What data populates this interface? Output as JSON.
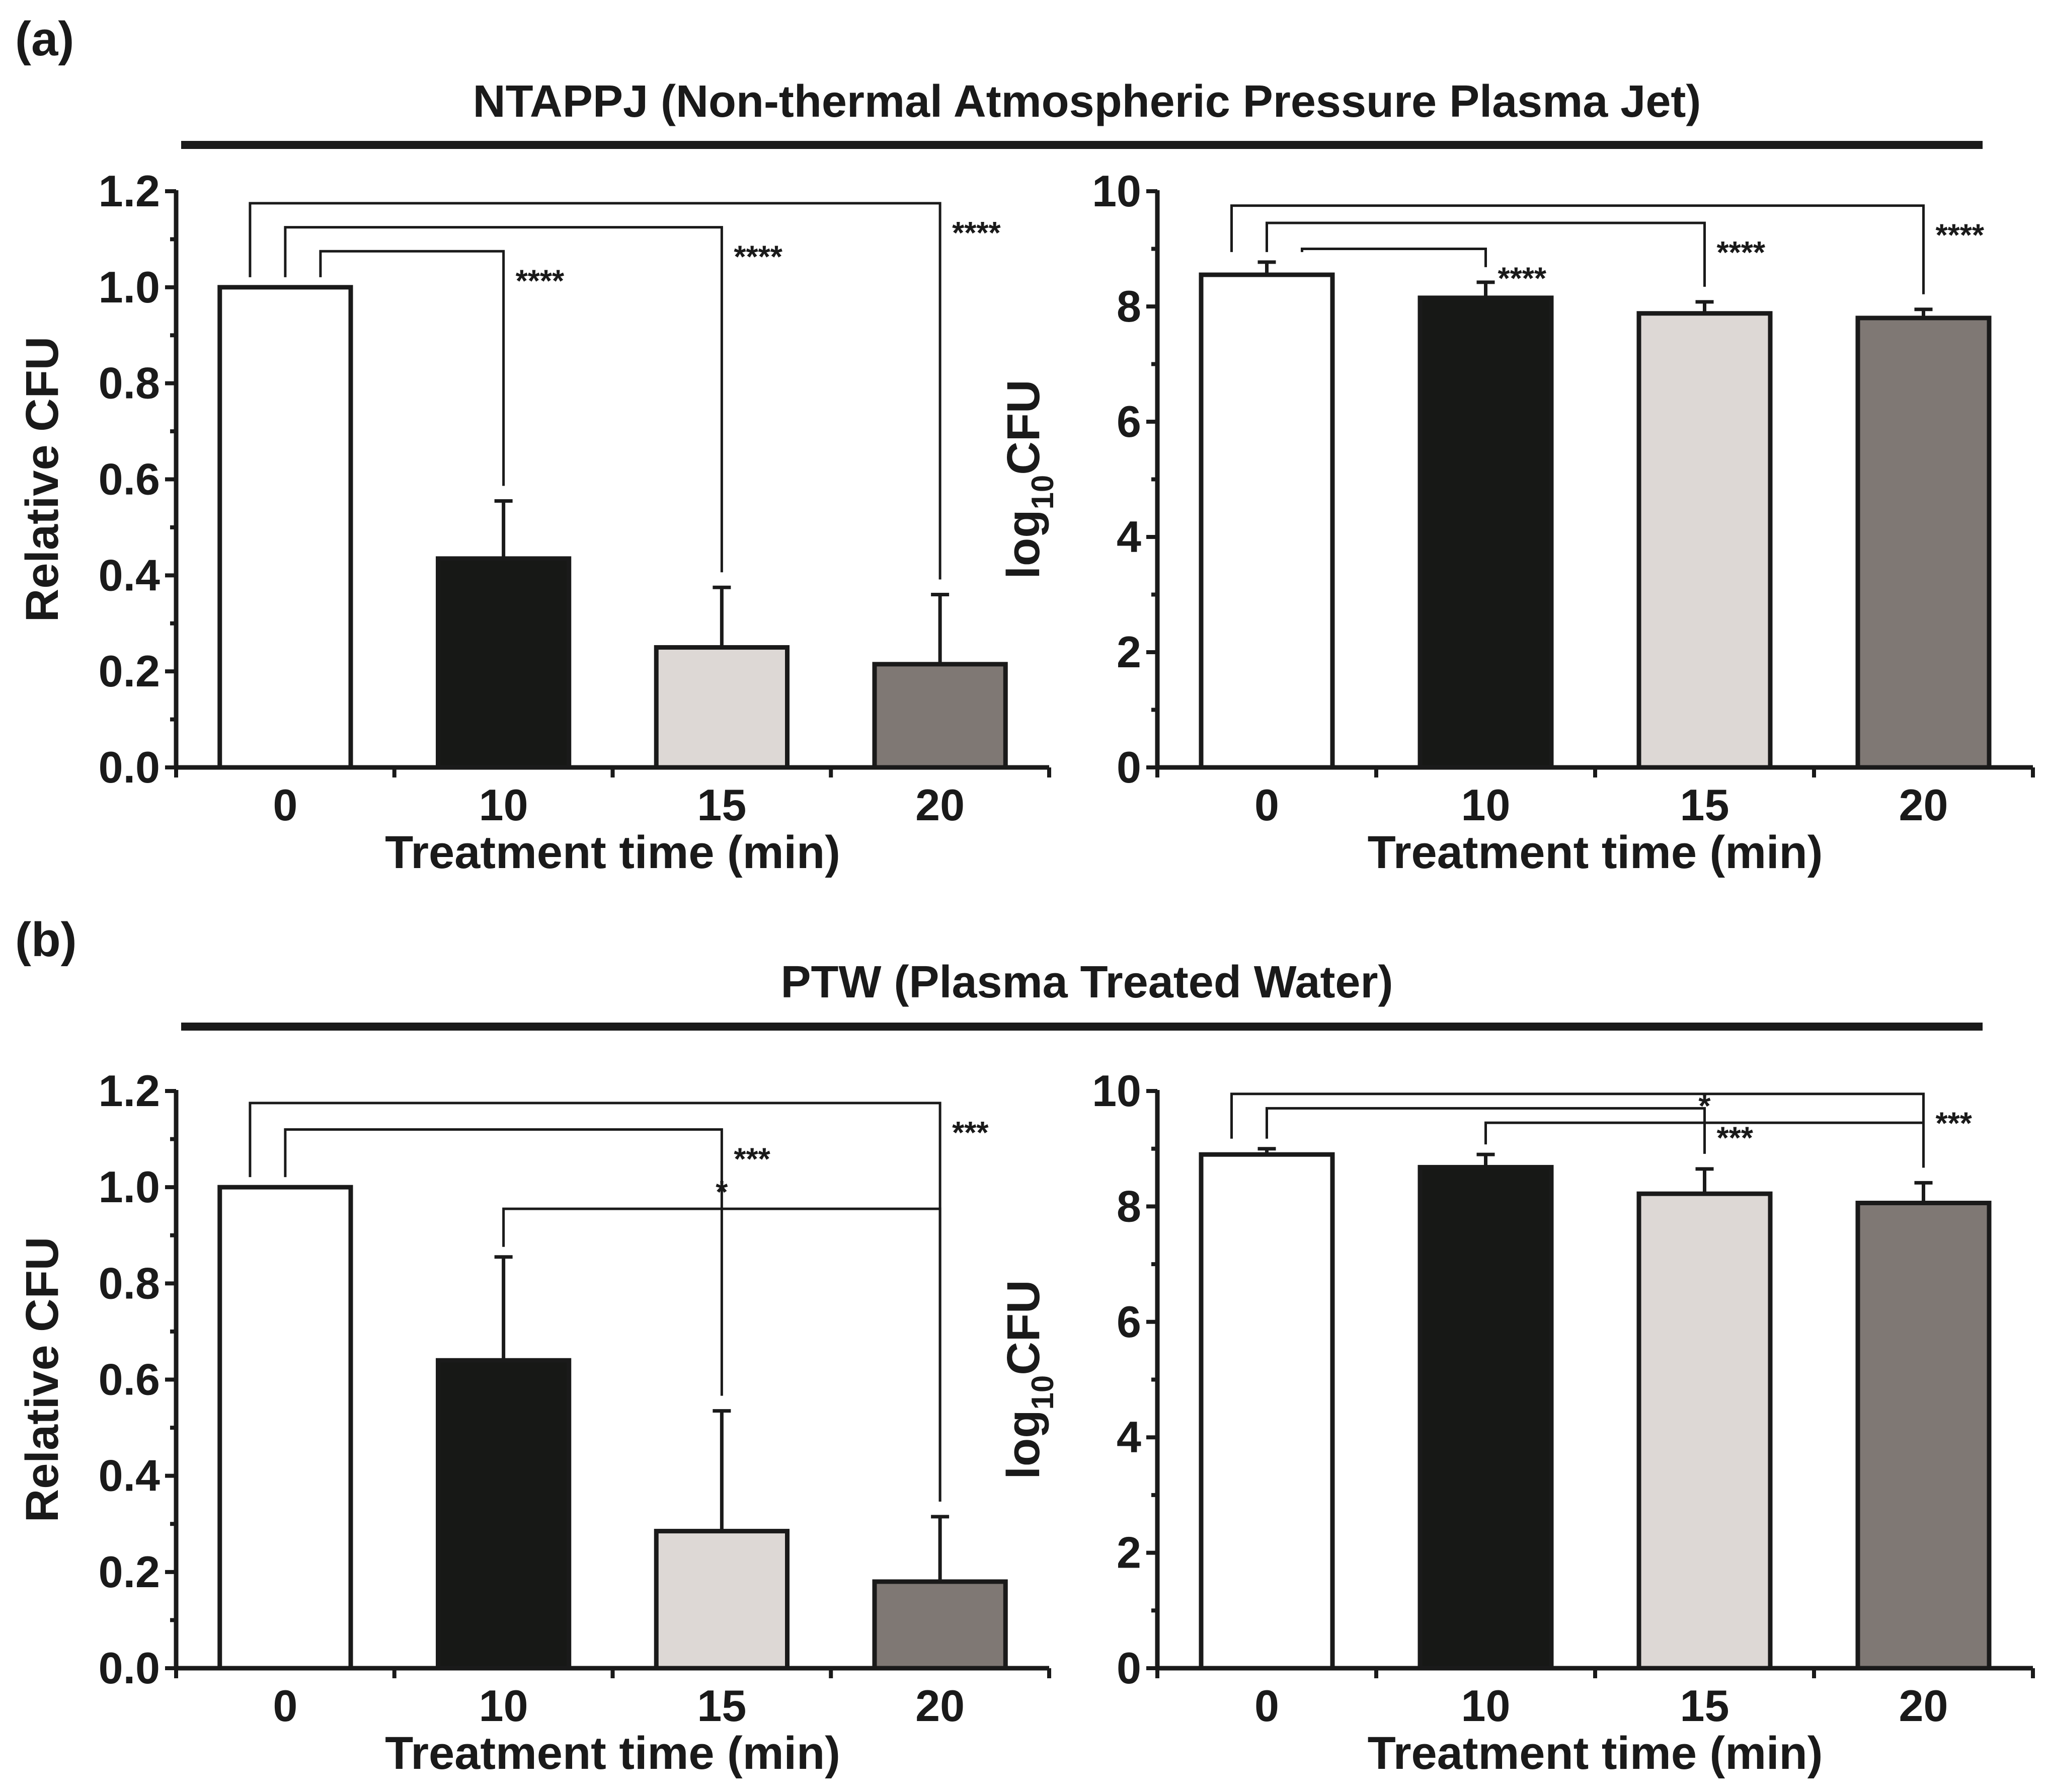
{
  "figure": {
    "panels": [
      {
        "label": "(a)",
        "title": "NTAPPJ (Non-thermal Atmospheric Pressure Plasma Jet)"
      },
      {
        "label": "(b)",
        "title": "PTW (Plasma Treated Water)"
      }
    ]
  },
  "colors": {
    "bar_fills": [
      "#ffffff",
      "#171816",
      "#ddd8d5",
      "#7f7874"
    ],
    "ink": "#1a1a1a"
  },
  "chart_data": [
    {
      "type": "bar",
      "panel": "(a)",
      "position": "top-left",
      "categories": [
        "0",
        "10",
        "15",
        "20"
      ],
      "values": [
        1.0,
        0.435,
        0.25,
        0.215
      ],
      "errors": [
        0.0,
        0.12,
        0.125,
        0.145
      ],
      "xlabel": "Treatment time (min)",
      "ylabel": "Relative CFU",
      "ylim": [
        0,
        1.2
      ],
      "yticks": [
        "0.0",
        "0.2",
        "0.4",
        "0.6",
        "0.8",
        "1.0",
        "1.2"
      ],
      "brackets": [
        {
          "from": 0,
          "to": 3,
          "level": 1.175,
          "label": "****"
        },
        {
          "from": 0,
          "to": 2,
          "level": 1.125,
          "label": "****"
        },
        {
          "from": 0,
          "to": 1,
          "level": 1.075,
          "label": "****"
        }
      ]
    },
    {
      "type": "bar",
      "panel": "(a)",
      "position": "top-right",
      "categories": [
        "0",
        "10",
        "15",
        "20"
      ],
      "values": [
        8.55,
        8.15,
        7.88,
        7.8
      ],
      "errors": [
        0.22,
        0.27,
        0.2,
        0.15
      ],
      "xlabel": "Treatment time (min)",
      "ylabel_main": "log",
      "ylabel_sub": "10",
      "ylabel_tail": "CFU",
      "ylim": [
        0,
        10
      ],
      "yticks": [
        "0",
        "2",
        "4",
        "6",
        "8",
        "10"
      ],
      "brackets": [
        {
          "from": 0,
          "to": 3,
          "level": 9.75,
          "label": "****"
        },
        {
          "from": 0,
          "to": 2,
          "level": 9.45,
          "label": "****"
        },
        {
          "from": 0,
          "to": 1,
          "level": 9.0,
          "label": "****"
        }
      ]
    },
    {
      "type": "bar",
      "panel": "(b)",
      "position": "bottom-left",
      "categories": [
        "0",
        "10",
        "15",
        "20"
      ],
      "values": [
        1.0,
        0.64,
        0.285,
        0.18
      ],
      "errors": [
        0.0,
        0.215,
        0.25,
        0.135
      ],
      "xlabel": "Treatment time (min)",
      "ylabel": "Relative CFU",
      "ylim": [
        0,
        1.2
      ],
      "yticks": [
        "0.0",
        "0.2",
        "0.4",
        "0.6",
        "0.8",
        "1.0",
        "1.2"
      ],
      "brackets": [
        {
          "from": 0,
          "to": 3,
          "level": 1.175,
          "label": "***"
        },
        {
          "from": 0,
          "to": 2,
          "level": 1.12,
          "label": "***"
        },
        {
          "from": 1,
          "to": 3,
          "level": 0.955,
          "label": "*"
        }
      ]
    },
    {
      "type": "bar",
      "panel": "(b)",
      "position": "bottom-right",
      "categories": [
        "0",
        "10",
        "15",
        "20"
      ],
      "values": [
        8.9,
        8.68,
        8.22,
        8.06
      ],
      "errors": [
        0.1,
        0.22,
        0.43,
        0.35
      ],
      "xlabel": "Treatment time (min)",
      "ylabel_main": "log",
      "ylabel_sub": "10",
      "ylabel_tail": "CFU",
      "ylim": [
        0,
        10
      ],
      "yticks": [
        "0",
        "2",
        "4",
        "6",
        "8",
        "10"
      ],
      "brackets": [
        {
          "from": 0,
          "to": 3,
          "level": 9.95,
          "label": "***"
        },
        {
          "from": 0,
          "to": 2,
          "level": 9.7,
          "label": "***"
        },
        {
          "from": 1,
          "to": 3,
          "level": 9.45,
          "label": "*"
        }
      ]
    }
  ]
}
